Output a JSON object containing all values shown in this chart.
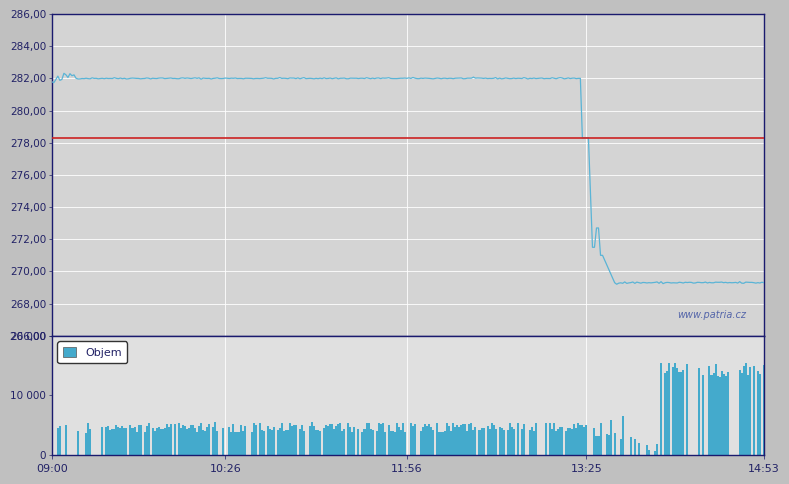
{
  "price_chart": {
    "ylim": [
      266.0,
      286.0
    ],
    "yticks": [
      266.0,
      268.0,
      270.0,
      272.0,
      274.0,
      276.0,
      278.0,
      280.0,
      282.0,
      284.0,
      286.0
    ],
    "reference_line": 278.3,
    "bg_color_top": "#d8d8d8",
    "bg_color_bot": "#c8c8c8",
    "line_color": "#5ab4d6",
    "ref_line_color": "#cc2222",
    "watermark": "www.patria.cz",
    "grid_color": "#ffffff",
    "border_color": "#1a1a6e"
  },
  "volume_chart": {
    "ylim": [
      0,
      20000
    ],
    "yticks": [
      0,
      10000,
      20000
    ],
    "bar_color": "#44aacc",
    "bg_color": "#e0e0e0",
    "grid_color": "#ffffff",
    "border_color": "#1a1a6e"
  },
  "x_ticks_labels": [
    "09:00",
    "10:26",
    "11:56",
    "13:25",
    "14:53"
  ],
  "x_ticks_pos": [
    0,
    86,
    176,
    265,
    353
  ],
  "total_minutes": 353,
  "legend_label": "Objem",
  "fig_facecolor": "#c0c0c0"
}
